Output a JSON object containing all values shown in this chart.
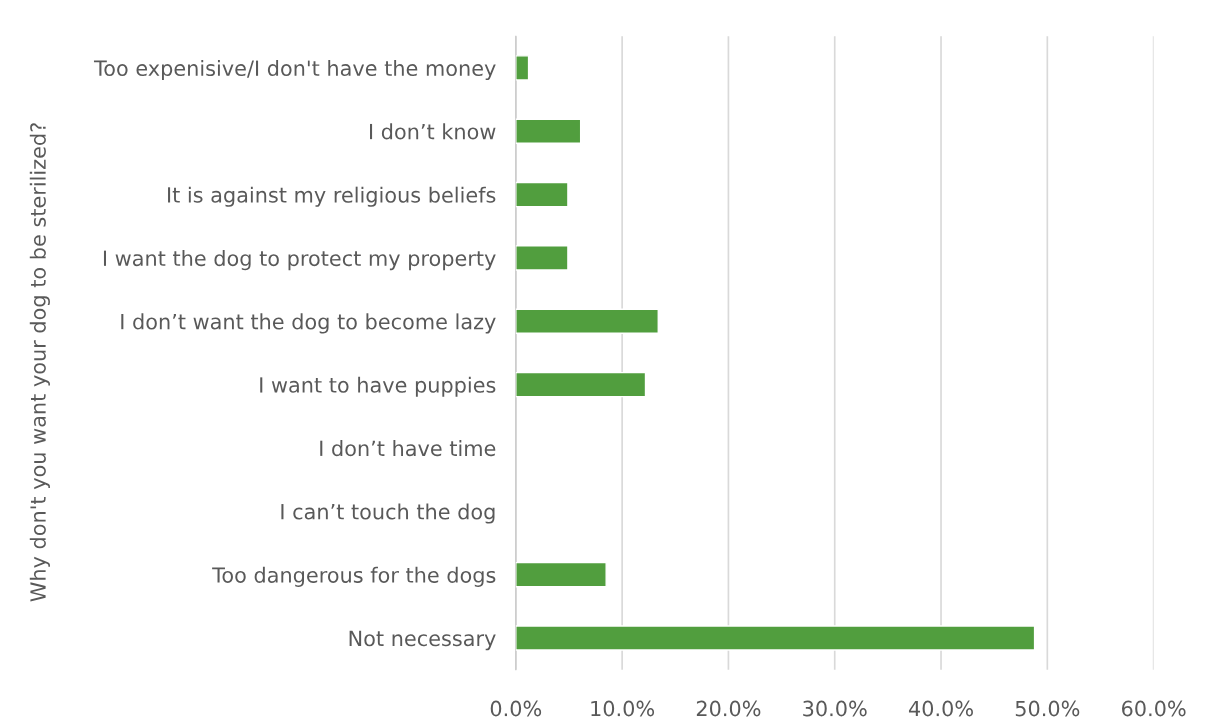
{
  "chart_data": {
    "type": "bar",
    "orientation": "horizontal",
    "ylabel": "Why don't you want your dog to be sterilized?",
    "categories": [
      "Too expenisive/I don't have the money",
      "I don’t know",
      "It is against my religious beliefs",
      "I want the dog to protect my property",
      "I don’t want the dog to become lazy",
      "I want to have puppies",
      "I don’t have time",
      "I can’t touch the dog",
      "Too dangerous for the dogs",
      "Not necessary"
    ],
    "values": [
      1.2,
      6.1,
      4.9,
      4.9,
      13.4,
      12.2,
      null,
      null,
      8.5,
      48.8
    ],
    "color": "#519e3e",
    "xlim": [
      0,
      60
    ],
    "xticks": [
      {
        "value": 0,
        "label": "0.0%"
      },
      {
        "value": 10,
        "label": "10.0%"
      },
      {
        "value": 20,
        "label": "20.0%"
      },
      {
        "value": 30,
        "label": "30.0%"
      },
      {
        "value": 40,
        "label": "40.0%"
      },
      {
        "value": 50,
        "label": "50.0%"
      },
      {
        "value": 60,
        "label": "60.0%"
      }
    ],
    "grid": "x"
  }
}
